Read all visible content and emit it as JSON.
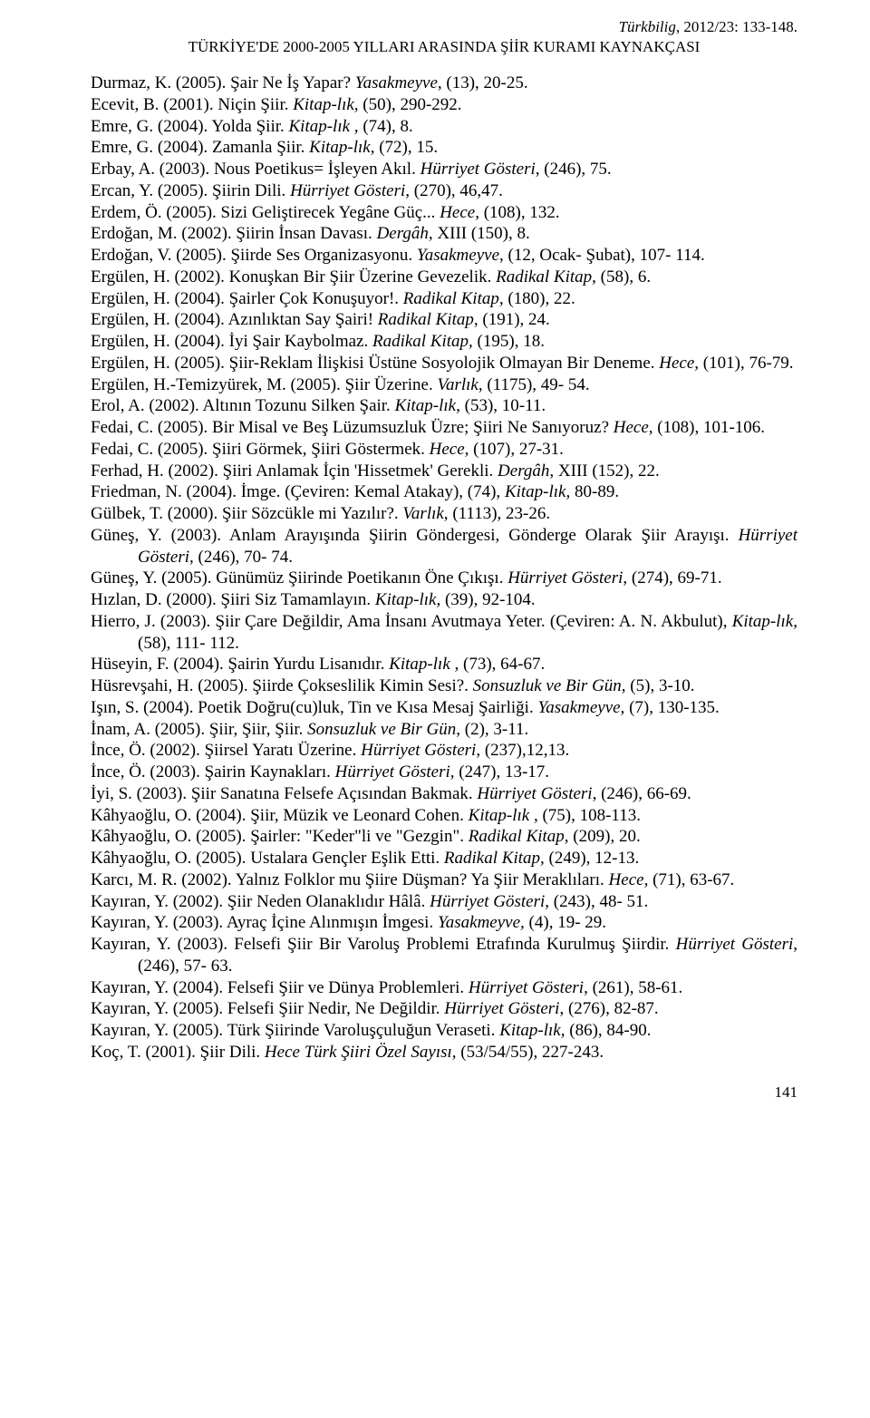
{
  "header": {
    "journal": "Türkbilig",
    "issue": ", 2012/23: 133-148.",
    "section": "TÜRKİYE'DE 2000-2005 YILLARI ARASINDA ŞİİR KURAMI KAYNAKÇASI"
  },
  "entries": [
    {
      "plain1": "Durmaz, K. (2005). Şair Ne İş Yapar? ",
      "italic1": "Yasakmeyve,",
      "plain2": " (13), 20-25."
    },
    {
      "plain1": "Ecevit, B. (2001). Niçin Şiir. ",
      "italic1": "Kitap-lık,",
      "plain2": " (50), 290-292."
    },
    {
      "plain1": "Emre, G. (2004). Yolda Şiir. ",
      "italic1": "Kitap-lık ,",
      "plain2": " (74), 8."
    },
    {
      "plain1": "Emre, G. (2004). Zamanla Şiir. ",
      "italic1": "Kitap-lık,",
      "plain2": " (72), 15."
    },
    {
      "plain1": "Erbay, A. (2003). Nous Poetikus= İşleyen Akıl. ",
      "italic1": "Hürriyet Gösteri",
      "plain2": ", (246), 75."
    },
    {
      "plain1": "Ercan, Y. (2005). Şiirin Dili. ",
      "italic1": "Hürriyet Gösteri,",
      "plain2": " (270),  46,47."
    },
    {
      "plain1": "Erdem, Ö. (2005). Sizi Geliştirecek Yegâne Güç... ",
      "italic1": "Hece,",
      "plain2": " (108), 132."
    },
    {
      "plain1": "Erdoğan, M. (2002). Şiirin İnsan Davası. ",
      "italic1": "Dergâh,",
      "plain2": " XIII (150), 8."
    },
    {
      "plain1": "Erdoğan, V. (2005). Şiirde Ses Organizasyonu. ",
      "italic1": "Yasakmeyve",
      "plain2": ", (12, Ocak- Şubat), 107- 114."
    },
    {
      "plain1": "Ergülen, H. (2002). Konuşkan Bir Şiir Üzerine Gevezelik. ",
      "italic1": "Radikal Kitap,",
      "plain2": " (58), 6."
    },
    {
      "plain1": "Ergülen, H. (2004). Şairler Çok Konuşuyor!. ",
      "italic1": "Radikal Kitap,",
      "plain2": " (180), 22."
    },
    {
      "plain1": "Ergülen, H. (2004). Azınlıktan Say Şairi! ",
      "italic1": "Radikal Kitap,",
      "plain2": " (191), 24."
    },
    {
      "plain1": "Ergülen, H. (2004). İyi Şair Kaybolmaz. ",
      "italic1": "Radikal Kitap,",
      "plain2": " (195), 18."
    },
    {
      "plain1": "Ergülen, H. (2005). Şiir-Reklam İlişkisi Üstüne Sosyolojik Olmayan Bir Deneme. ",
      "italic1": "Hece,",
      "plain2": " (101), 76-79."
    },
    {
      "plain1": "Ergülen, H.-Temizyürek, M. (2005). Şiir Üzerine. ",
      "italic1": "Varlık",
      "plain2": ", (1175), 49- 54."
    },
    {
      "plain1": "Erol, A. (2002). Altının Tozunu Silken Şair. ",
      "italic1": "Kitap-lık,",
      "plain2": " (53), 10-11."
    },
    {
      "plain1": "Fedai, C. (2005). Bir Misal ve Beş Lüzumsuzluk Üzre; Şiiri Ne Sanıyoruz? ",
      "italic1": "Hece,",
      "plain2": " (108), 101-106."
    },
    {
      "plain1": "Fedai, C. (2005). Şiiri Görmek, Şiiri Göstermek. ",
      "italic1": "Hece,",
      "plain2": " (107), 27-31."
    },
    {
      "plain1": "Ferhad, H. (2002). Şiiri Anlamak İçin 'Hissetmek' Gerekli. ",
      "italic1": "Dergâh,",
      "plain2": " XIII (152), 22."
    },
    {
      "plain1": "Friedman, N. (2004). İmge. (Çeviren: Kemal Atakay), (74), ",
      "italic1": "Kitap-lık,",
      "plain2": " 80-89."
    },
    {
      "plain1": "Gülbek, T. (2000). Şiir Sözcükle mi Yazılır?. ",
      "italic1": "Varlık,",
      "plain2": " (1113), 23-26."
    },
    {
      "plain1": "Güneş, Y. (2003). Anlam Arayışında Şiirin Göndergesi, Gönderge Olarak Şiir Arayışı. ",
      "italic1": "Hürriyet Gösteri",
      "plain2": ", (246), 70- 74."
    },
    {
      "plain1": "Güneş, Y. (2005). Günümüz Şiirinde Poetikanın Öne Çıkışı. ",
      "italic1": "Hürriyet Gösteri",
      "plain2": ", (274), 69-71."
    },
    {
      "plain1": "Hızlan, D. (2000). Şiiri Siz Tamamlayın. ",
      "italic1": "Kitap-lık,",
      "plain2": " (39), 92-104."
    },
    {
      "plain1": "Hierro, J. (2003). Şiir Çare Değildir, Ama İnsanı Avutmaya Yeter. (Çeviren: A. N. Akbulut), ",
      "italic1": "Kitap-lık,",
      "plain2": " (58), 111- 112."
    },
    {
      "plain1": "Hüseyin, F. (2004). Şairin Yurdu Lisanıdır. ",
      "italic1": "Kitap-lık ,",
      "plain2": " (73), 64-67."
    },
    {
      "plain1": "Hüsrevşahi, H. (2005). Şiirde Çokseslilik Kimin Sesi?. ",
      "italic1": "Sonsuzluk ve Bir Gün",
      "plain2": ", (5), 3-10."
    },
    {
      "plain1": "Işın, S. (2004). Poetik Doğru(cu)luk, Tin ve Kısa Mesaj Şairliği. ",
      "italic1": "Yasakmeyve,",
      "plain2": " (7), 130-135."
    },
    {
      "plain1": "İnam, A. (2005). Şiir, Şiir, Şiir. ",
      "italic1": "Sonsuzluk ve Bir Gün",
      "plain2": ", (2), 3-11."
    },
    {
      "plain1": "İnce, Ö. (2002). Şiirsel Yaratı Üzerine. ",
      "italic1": "Hürriyet Gösteri",
      "plain2": ", (237),12,13."
    },
    {
      "plain1": "İnce, Ö. (2003). Şairin Kaynakları. ",
      "italic1": "Hürriyet Gösteri",
      "plain2": ", (247), 13-17."
    },
    {
      "plain1": "İyi, S. (2003). Şiir Sanatına Felsefe Açısından Bakmak. ",
      "italic1": "Hürriyet Gösteri",
      "plain2": ", (246), 66-69."
    },
    {
      "plain1": "Kâhyaoğlu, O. (2004). Şiir, Müzik ve Leonard Cohen. ",
      "italic1": "Kitap-lık ,",
      "plain2": " (75), 108-113."
    },
    {
      "plain1": "Kâhyaoğlu, O. (2005). Şairler: \"Keder\"li ve \"Gezgin\". ",
      "italic1": "Radikal Kitap,",
      "plain2": " (209), 20."
    },
    {
      "plain1": "Kâhyaoğlu, O. (2005). Ustalara Gençler Eşlik Etti. ",
      "italic1": "Radikal Kitap,",
      "plain2": " (249), 12-13."
    },
    {
      "plain1": "Karcı, M. R. (2002). Yalnız Folklor mu Şiire Düşman? Ya Şiir Meraklıları. ",
      "italic1": "Hece,",
      "plain2": " (71), 63-67."
    },
    {
      "plain1": "Kayıran, Y. (2002). Şiir Neden Olanaklıdır Hâlâ. ",
      "italic1": "Hürriyet Gösteri",
      "plain2": ", (243), 48- 51."
    },
    {
      "plain1": "Kayıran, Y. (2003). Ayraç İçine Alınmışın İmgesi. ",
      "italic1": "Yasakmeyve,",
      "plain2": " (4), 19- 29."
    },
    {
      "plain1": "Kayıran, Y. (2003). Felsefi Şiir Bir Varoluş Problemi Etrafında Kurulmuş Şiirdir. ",
      "italic1": "Hürriyet Gösteri",
      "plain2": ", (246), 57- 63."
    },
    {
      "plain1": "Kayıran, Y. (2004). Felsefi Şiir ve Dünya Problemleri. ",
      "italic1": "Hürriyet Gösteri",
      "plain2": ", (261), 58-61."
    },
    {
      "plain1": "Kayıran, Y. (2005). Felsefi Şiir Nedir, Ne Değildir. ",
      "italic1": "Hürriyet Gösteri",
      "plain2": ", (276), 82-87."
    },
    {
      "plain1": "Kayıran, Y. (2005). Türk Şiirinde Varoluşçuluğun Veraseti. ",
      "italic1": "Kitap-lık,",
      "plain2": " (86), 84-90."
    },
    {
      "plain1": "Koç, T. (2001). Şiir Dili. ",
      "italic1": "Hece Türk Şiiri Özel Sayısı,",
      "plain2": " (53/54/55), 227-243."
    }
  ],
  "pageNumber": "141"
}
